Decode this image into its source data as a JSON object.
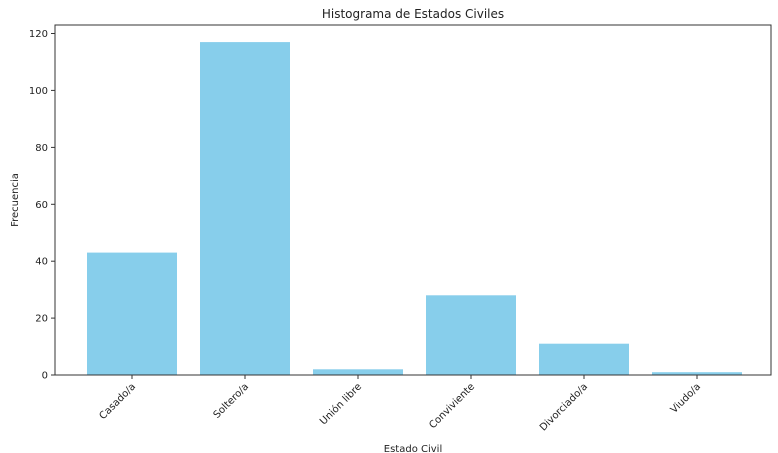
{
  "chart_data": {
    "type": "bar",
    "title": "Histograma de Estados Civiles",
    "xlabel": "Estado Civil",
    "ylabel": "Frecuencia",
    "categories": [
      "Casado/a",
      "Soltero/a",
      "Unión libre",
      "Conviviente",
      "Divorciado/a",
      "Viudo/a"
    ],
    "values": [
      43,
      117,
      2,
      28,
      11,
      1
    ],
    "ylim": [
      0,
      123
    ],
    "yticks": [
      0,
      20,
      40,
      60,
      80,
      100,
      120
    ],
    "bar_color": "#87ceeb",
    "grid": false,
    "legend": "none"
  }
}
